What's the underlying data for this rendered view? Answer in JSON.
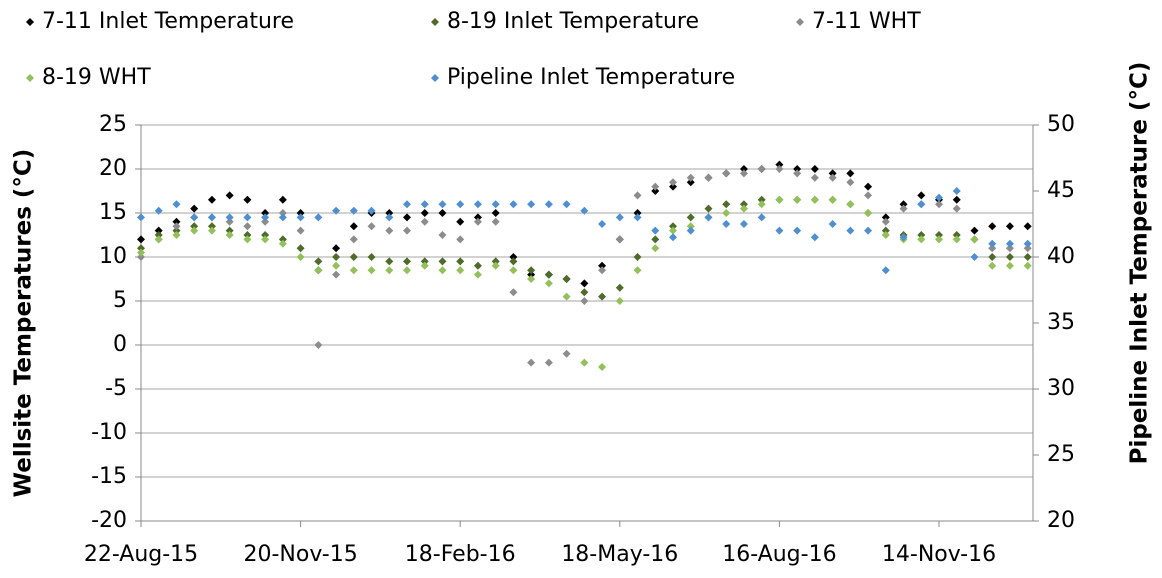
{
  "chart_data": {
    "type": "scatter",
    "x": [
      "2015-08-22",
      "2015-09-01",
      "2015-09-11",
      "2015-09-21",
      "2015-10-01",
      "2015-10-11",
      "2015-10-21",
      "2015-10-31",
      "2015-11-10",
      "2015-11-20",
      "2015-11-30",
      "2015-12-10",
      "2015-12-20",
      "2015-12-30",
      "2016-01-09",
      "2016-01-19",
      "2016-01-29",
      "2016-02-08",
      "2016-02-18",
      "2016-02-28",
      "2016-03-09",
      "2016-03-19",
      "2016-03-29",
      "2016-04-08",
      "2016-04-18",
      "2016-04-28",
      "2016-05-08",
      "2016-05-18",
      "2016-05-28",
      "2016-06-07",
      "2016-06-17",
      "2016-06-27",
      "2016-07-07",
      "2016-07-17",
      "2016-07-27",
      "2016-08-06",
      "2016-08-16",
      "2016-08-26",
      "2016-09-05",
      "2016-09-15",
      "2016-09-25",
      "2016-10-05",
      "2016-10-15",
      "2016-10-25",
      "2016-11-04",
      "2016-11-14",
      "2016-11-24",
      "2016-12-04",
      "2016-12-14",
      "2016-12-24",
      "2017-01-03"
    ],
    "series": [
      {
        "name": "7-11 Inlet Temperature",
        "color": "#000000",
        "values": [
          12,
          13,
          14,
          15.5,
          16.5,
          17,
          16.5,
          15,
          16.5,
          15,
          8.5,
          11,
          13.5,
          15,
          15,
          14.5,
          15,
          15,
          14,
          14.5,
          15,
          10,
          8,
          8,
          7.5,
          7,
          9,
          12,
          15,
          17.5,
          18,
          18.5,
          19,
          19.5,
          20,
          20,
          20.5,
          20,
          20,
          19.5,
          19.5,
          18,
          14.5,
          16,
          17,
          16.5,
          16.5,
          13,
          13.5,
          13.5,
          13.5
        ]
      },
      {
        "name": "8-19 Inlet Temperature",
        "color": "#4e6b2a",
        "values": [
          11,
          12.5,
          13,
          13.5,
          13.5,
          13,
          12.5,
          12.5,
          12,
          11,
          9.5,
          10,
          10,
          10,
          9.5,
          9.5,
          9.5,
          9.5,
          9.5,
          9,
          9.5,
          9.5,
          8.5,
          8,
          7.5,
          6,
          5.5,
          6.5,
          10,
          12,
          13.5,
          14.5,
          15.5,
          16,
          16,
          16.5,
          16.5,
          16.5,
          16.5,
          16.5,
          16,
          15,
          13,
          12.5,
          12.5,
          12.5,
          12.5,
          12,
          10,
          10,
          10
        ]
      },
      {
        "name": "7-11 WHT",
        "color": "#8c8c8c",
        "values": [
          10,
          12,
          13.5,
          14.5,
          14.5,
          14,
          13.5,
          14,
          15,
          13,
          0,
          8,
          12,
          13.5,
          13,
          13,
          14,
          12.5,
          12,
          14,
          14,
          6,
          -2,
          -2,
          -1,
          5,
          8.5,
          12,
          17,
          18,
          18.5,
          19,
          19,
          19.5,
          19.5,
          20,
          20,
          19.5,
          19,
          19,
          18.5,
          17,
          14,
          15.5,
          16,
          16,
          15.5,
          12,
          11,
          11,
          11
        ]
      },
      {
        "name": "8-19 WHT",
        "color": "#92c05a",
        "values": [
          10.5,
          12,
          12.5,
          13,
          13,
          12.5,
          12,
          12,
          11.5,
          10,
          8.5,
          9,
          8.5,
          8.5,
          8.5,
          8.5,
          9,
          8.5,
          8.5,
          8,
          9,
          8.5,
          7.5,
          7,
          5.5,
          -2,
          -2.5,
          5,
          8.5,
          11,
          13,
          13.5,
          14.5,
          15,
          15.5,
          16,
          16.5,
          16.5,
          16.5,
          16.5,
          16,
          15,
          12.5,
          12,
          12,
          12,
          12,
          12,
          9,
          9,
          9
        ]
      },
      {
        "name": "Pipeline Inlet Temperature",
        "color": "#4f8fd0",
        "axis": "y2",
        "values": [
          43,
          43.5,
          44,
          43,
          43,
          43,
          43,
          43,
          43,
          43,
          43,
          43.5,
          43.5,
          43.5,
          43,
          44,
          44,
          44,
          44,
          44,
          44,
          44,
          44,
          44,
          44,
          43.5,
          42.5,
          43,
          43,
          42,
          41.5,
          42,
          43,
          42.5,
          42.5,
          43,
          42,
          42,
          41.5,
          42.5,
          42,
          42,
          39,
          41.5,
          44,
          44.5,
          45,
          40,
          41,
          41,
          41
        ]
      }
    ],
    "y_label": "Wellsite Temperatures (°C)",
    "y2_label": "Pipeline Inlet Temperature (°C)",
    "xlim": [
      "2015-08-22",
      "2017-01-06"
    ],
    "xticks": [
      {
        "value": "2015-08-22",
        "label": "22-Aug-15"
      },
      {
        "value": "2015-11-20",
        "label": "20-Nov-15"
      },
      {
        "value": "2016-02-18",
        "label": "18-Feb-16"
      },
      {
        "value": "2016-05-18",
        "label": "18-May-16"
      },
      {
        "value": "2016-08-16",
        "label": "16-Aug-16"
      },
      {
        "value": "2016-11-14",
        "label": "14-Nov-16"
      }
    ],
    "ylim": [
      -20,
      25
    ],
    "yticks": [
      -20,
      -15,
      -10,
      -5,
      0,
      5,
      10,
      15,
      20,
      25
    ],
    "y2lim": [
      20,
      50
    ],
    "y2ticks": [
      20,
      25,
      30,
      35,
      40,
      45,
      50
    ],
    "grid": true,
    "legend": "top"
  }
}
